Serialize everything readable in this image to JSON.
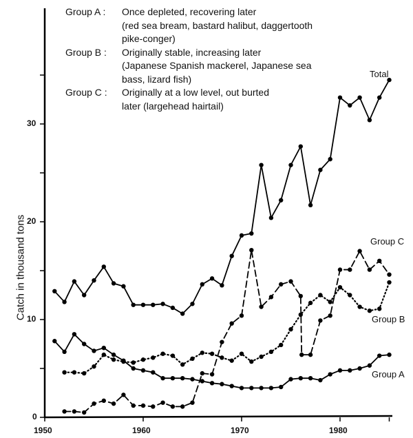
{
  "chart_data": {
    "type": "line",
    "title": "",
    "xlabel": "",
    "ylabel": "Catch in thousand tons",
    "xlim": [
      1950,
      1986
    ],
    "ylim": [
      0,
      38
    ],
    "x_ticks": [
      "1950",
      "1960",
      "1970",
      "1980"
    ],
    "y_ticks": [
      "0",
      "10",
      "20",
      "30"
    ],
    "grid": false,
    "legend_position": "top-left text block",
    "legend": [
      {
        "key": "Group A :",
        "lines": [
          "Once depleted, recovering later",
          "(red sea bream, bastard halibut, daggertooth",
          "pike-conger)"
        ]
      },
      {
        "key": "Group B :",
        "lines": [
          "Originally stable, increasing later",
          "(Japanese Spanish mackerel, Japanese sea",
          "bass, lizard fish)"
        ]
      },
      {
        "key": "Group C :",
        "lines": [
          "Originally at a low level, out burted",
          "later (largehead hairtail)"
        ]
      }
    ],
    "series": [
      {
        "name": "Total",
        "style": "solid",
        "x": [
          1951,
          1952,
          1953,
          1954,
          1955,
          1956,
          1957,
          1958,
          1959,
          1960,
          1961,
          1962,
          1963,
          1964,
          1965,
          1966,
          1967,
          1968,
          1969,
          1970,
          1971,
          1972,
          1973,
          1974,
          1975,
          1976,
          1977,
          1978,
          1979,
          1980,
          1981,
          1982,
          1983,
          1984,
          1985
        ],
        "values": [
          12.9,
          11.8,
          13.9,
          12.5,
          14.0,
          15.4,
          13.7,
          13.4,
          11.5,
          11.5,
          11.5,
          11.6,
          11.2,
          10.6,
          11.6,
          13.6,
          14.2,
          13.5,
          16.5,
          18.6,
          18.8,
          25.8,
          20.4,
          22.2,
          25.8,
          27.7,
          21.7,
          25.3,
          26.4,
          32.7,
          31.9,
          32.7,
          30.4,
          32.7,
          34.5
        ]
      },
      {
        "name": "Group C",
        "style": "dashed",
        "x": [
          1952,
          1953,
          1954,
          1955,
          1956,
          1957,
          1958,
          1959,
          1960,
          1961,
          1962,
          1963,
          1964,
          1965,
          1966,
          1967,
          1968,
          1969,
          1970,
          1971,
          1972,
          1973,
          1974,
          1975,
          1976,
          1976.1,
          1977,
          1978,
          1979,
          1980,
          1981,
          1982,
          1983,
          1984,
          1985
        ],
        "values": [
          0.6,
          0.6,
          0.5,
          1.4,
          1.7,
          1.4,
          2.3,
          1.2,
          1.2,
          1.1,
          1.5,
          1.1,
          1.1,
          1.5,
          4.5,
          4.4,
          7.7,
          9.6,
          10.4,
          17.1,
          11.3,
          12.3,
          13.6,
          13.9,
          12.4,
          6.4,
          6.4,
          9.9,
          10.4,
          15.1,
          15.1,
          17.0,
          15.1,
          16.0,
          14.6
        ]
      },
      {
        "name": "Group B",
        "style": "dotted",
        "x": [
          1952,
          1953,
          1954,
          1955,
          1956,
          1957,
          1958,
          1959,
          1960,
          1961,
          1962,
          1963,
          1964,
          1965,
          1966,
          1967,
          1968,
          1969,
          1970,
          1971,
          1972,
          1973,
          1974,
          1975,
          1976,
          1977,
          1978,
          1979,
          1980,
          1981,
          1982,
          1983,
          1984,
          1985
        ],
        "values": [
          4.6,
          4.6,
          4.5,
          5.2,
          6.4,
          5.9,
          5.7,
          5.6,
          5.9,
          6.1,
          6.5,
          6.3,
          5.4,
          6.0,
          6.6,
          6.5,
          6.1,
          5.8,
          6.5,
          5.7,
          6.2,
          6.7,
          7.4,
          9.0,
          10.5,
          11.7,
          12.5,
          11.8,
          13.3,
          12.5,
          11.3,
          10.9,
          11.1,
          13.8
        ]
      },
      {
        "name": "Group A",
        "style": "solid",
        "x": [
          1951,
          1952,
          1953,
          1954,
          1955,
          1956,
          1957,
          1958,
          1959,
          1960,
          1961,
          1962,
          1963,
          1964,
          1965,
          1966,
          1967,
          1968,
          1969,
          1970,
          1971,
          1972,
          1973,
          1974,
          1975,
          1976,
          1977,
          1978,
          1979,
          1980,
          1981,
          1982,
          1983,
          1984,
          1985
        ],
        "values": [
          7.8,
          6.7,
          8.5,
          7.5,
          6.8,
          7.1,
          6.4,
          5.8,
          5.0,
          4.8,
          4.6,
          4.0,
          4.0,
          4.0,
          3.9,
          3.7,
          3.5,
          3.4,
          3.2,
          3.0,
          3.0,
          3.0,
          3.0,
          3.1,
          3.9,
          4.0,
          4.0,
          3.8,
          4.4,
          4.8,
          4.8,
          5.0,
          5.3,
          6.3,
          6.4
        ]
      }
    ],
    "annotations": [
      "Total",
      "Group C",
      "Group B",
      "Group A"
    ]
  },
  "labels": {
    "ylabel": "Catch in thousand tons",
    "total": "Total",
    "group_c": "Group C",
    "group_b": "Group B",
    "group_a": "Group A"
  }
}
